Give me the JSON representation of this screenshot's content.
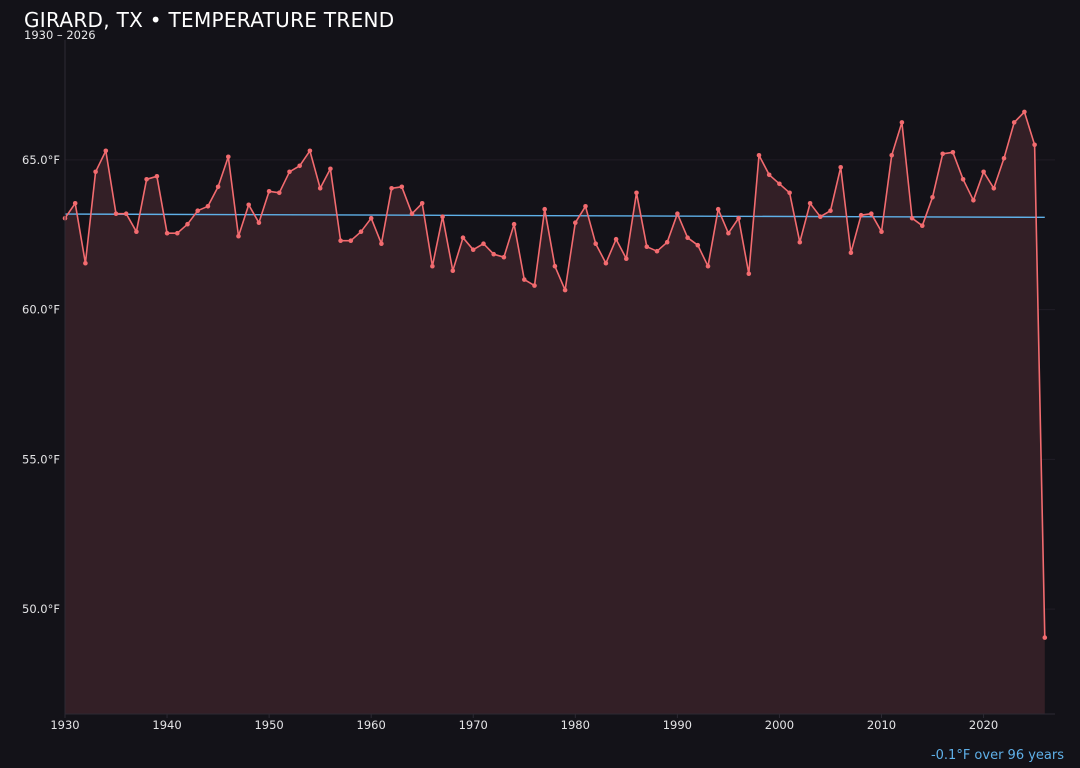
{
  "header": {
    "title": "GIRARD, TX • TEMPERATURE TREND",
    "subtitle": "1930 – 2026"
  },
  "footer": {
    "trend_note": "-0.1°F over 96 years"
  },
  "colors": {
    "background": "#131218",
    "series_line": "#f26b6f",
    "series_fill": "#331f26",
    "trend_line": "#5fb0e8",
    "grid": "#201d26",
    "axis": "#2c2933"
  },
  "chart_data": {
    "type": "line",
    "title": "GIRARD, TX • TEMPERATURE TREND",
    "subtitle": "1930 – 2026",
    "xlabel": "",
    "ylabel": "",
    "xlim": [
      1930,
      2027
    ],
    "ylim": [
      46.5,
      69
    ],
    "x_ticks": [
      1930,
      1940,
      1950,
      1960,
      1970,
      1980,
      1990,
      2000,
      2010,
      2020
    ],
    "x_tick_labels": [
      "1930",
      "1940",
      "1950",
      "1960",
      "1970",
      "1980",
      "1990",
      "2000",
      "2010",
      "2020"
    ],
    "y_ticks": [
      50,
      55,
      60,
      65
    ],
    "y_tick_labels": [
      "50.0°F",
      "55.0°F",
      "60.0°F",
      "65.0°F"
    ],
    "grid": true,
    "series": [
      {
        "x": [
          1930,
          1931,
          1932,
          1933,
          1934,
          1935,
          1936,
          1937,
          1938,
          1939,
          1940,
          1941,
          1942,
          1943,
          1944,
          1945,
          1946,
          1947,
          1948,
          1949,
          1950,
          1951,
          1952,
          1953,
          1954,
          1955,
          1956,
          1957,
          1958,
          1959,
          1960,
          1961,
          1962,
          1963,
          1964,
          1965,
          1966,
          1967,
          1968,
          1969,
          1970,
          1971,
          1972,
          1973,
          1974,
          1975,
          1976,
          1977,
          1978,
          1979,
          1980,
          1981,
          1982,
          1983,
          1984,
          1985,
          1986,
          1987,
          1988,
          1989,
          1990,
          1991,
          1992,
          1993,
          1994,
          1995,
          1996,
          1997,
          1998,
          1999,
          2000,
          2001,
          2002,
          2003,
          2004,
          2005,
          2006,
          2007,
          2008,
          2009,
          2010,
          2011,
          2012,
          2013,
          2014,
          2015,
          2016,
          2017,
          2018,
          2019,
          2020,
          2021,
          2022,
          2023,
          2024,
          2025,
          2026
        ],
        "y": [
          63.05,
          63.55,
          61.55,
          64.6,
          65.3,
          63.2,
          63.2,
          62.6,
          64.35,
          64.45,
          62.55,
          62.55,
          62.85,
          63.3,
          63.45,
          64.1,
          65.1,
          62.45,
          63.5,
          62.9,
          63.95,
          63.9,
          64.6,
          64.8,
          65.3,
          64.05,
          64.7,
          62.3,
          62.3,
          62.6,
          63.05,
          62.2,
          64.05,
          64.1,
          63.2,
          63.55,
          61.45,
          63.1,
          61.3,
          62.4,
          62.0,
          62.2,
          61.85,
          61.75,
          62.85,
          61.0,
          60.8,
          63.35,
          61.45,
          60.65,
          62.9,
          63.45,
          62.2,
          61.55,
          62.35,
          61.7,
          63.9,
          62.1,
          61.95,
          62.25,
          63.2,
          62.4,
          62.15,
          61.45,
          63.35,
          62.55,
          63.05,
          61.2,
          65.15,
          64.5,
          64.2,
          63.9,
          62.25,
          63.55,
          63.1,
          63.3,
          64.75,
          61.9,
          63.15,
          63.2,
          62.6,
          65.15,
          66.25,
          63.05,
          62.8,
          63.75,
          65.2,
          65.25,
          64.35,
          63.65,
          64.6,
          64.05,
          65.05,
          66.25,
          66.6,
          65.5,
          49.05
        ]
      }
    ],
    "trend": {
      "label": "-0.1°F over 96 years",
      "x": [
        1930,
        2026
      ],
      "y": [
        63.19,
        63.08
      ]
    }
  }
}
